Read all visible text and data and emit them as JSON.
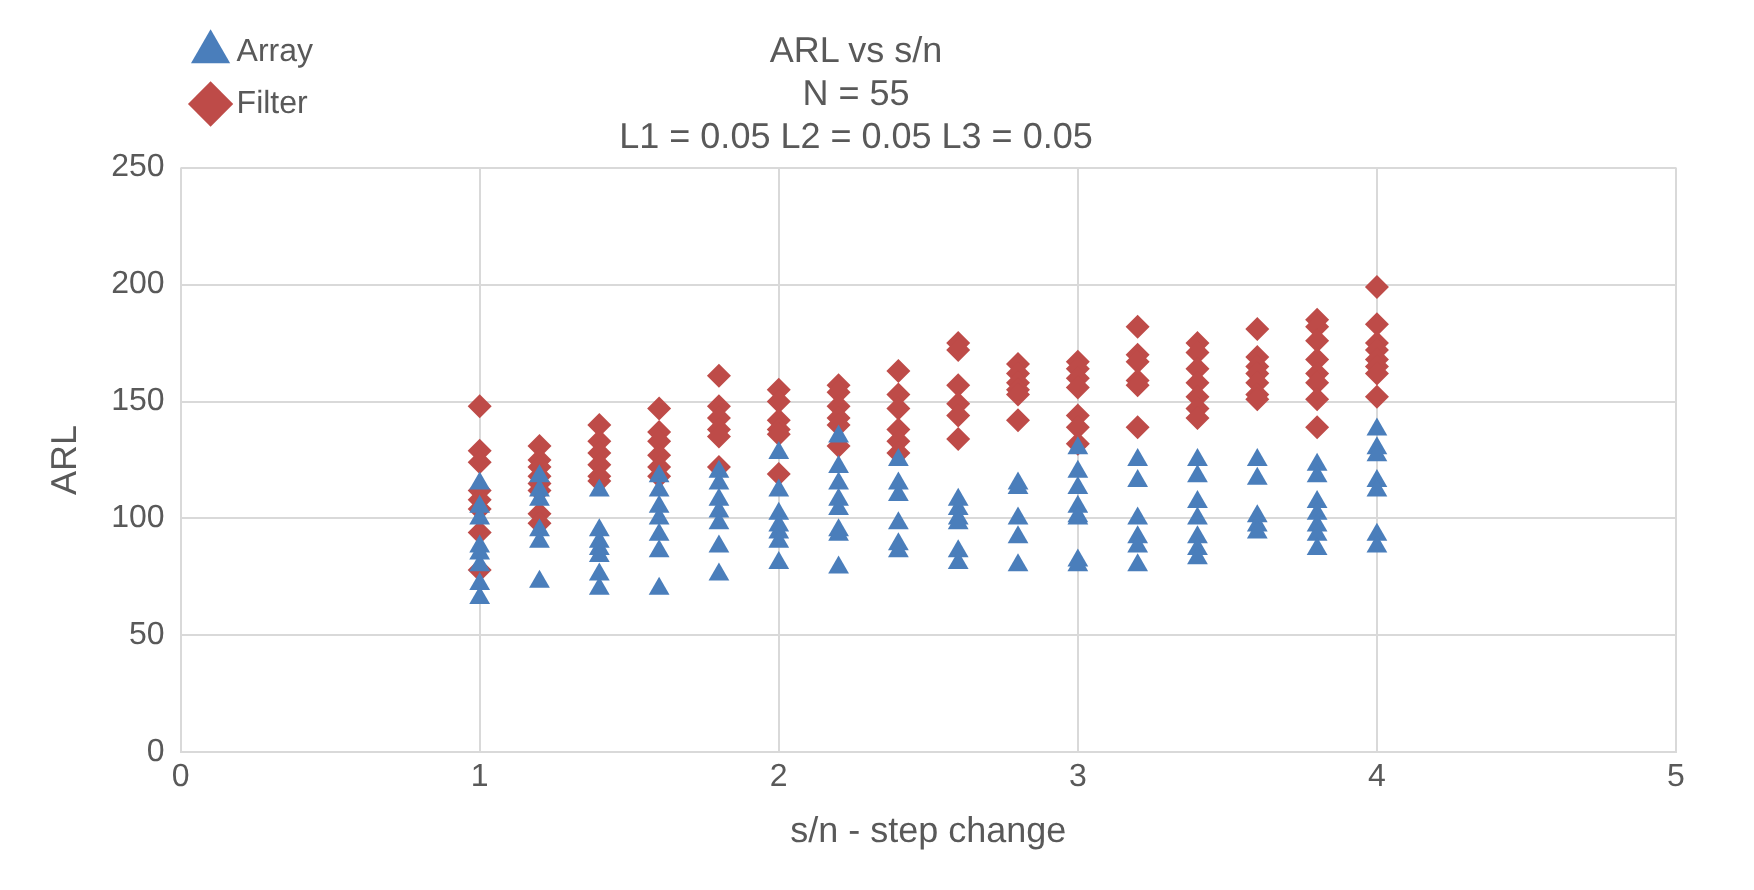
{
  "chart_data": {
    "type": "scatter",
    "title": "ARL vs s/n\nN = 55\nL1 = 0.05 L2 = 0.05 L3 = 0.05",
    "xlabel": "s/n - step change",
    "ylabel": "ARL",
    "xlim": [
      0,
      5
    ],
    "xticks": [
      0,
      1,
      2,
      3,
      4,
      5
    ],
    "ylim": [
      0,
      250
    ],
    "yticks": [
      0,
      50,
      100,
      150,
      200,
      250
    ],
    "grid": true,
    "legend": "top left",
    "series": [
      {
        "name": "Array",
        "color": "#4a7ebb",
        "marker": "triangle",
        "x": [
          1,
          1,
          1,
          1,
          1,
          1,
          1,
          1,
          1.2,
          1.2,
          1.2,
          1.2,
          1.2,
          1.2,
          1.4,
          1.4,
          1.4,
          1.4,
          1.4,
          1.4,
          1.4,
          1.6,
          1.6,
          1.6,
          1.6,
          1.6,
          1.6,
          1.6,
          1.8,
          1.8,
          1.8,
          1.8,
          1.8,
          1.8,
          1.8,
          2,
          2,
          2,
          2,
          2,
          2,
          2,
          2.2,
          2.2,
          2.2,
          2.2,
          2.2,
          2.2,
          2.2,
          2.2,
          2.4,
          2.4,
          2.4,
          2.4,
          2.4,
          2.4,
          2.6,
          2.6,
          2.6,
          2.6,
          2.6,
          2.6,
          2.8,
          2.8,
          2.8,
          2.8,
          2.8,
          3,
          3,
          3,
          3,
          3,
          3,
          3,
          3,
          3.2,
          3.2,
          3.2,
          3.2,
          3.2,
          3.2,
          3.4,
          3.4,
          3.4,
          3.4,
          3.4,
          3.4,
          3.4,
          3.6,
          3.6,
          3.6,
          3.6,
          3.6,
          3.8,
          3.8,
          3.8,
          3.8,
          3.8,
          3.8,
          3.8,
          4,
          4,
          4,
          4,
          4,
          4,
          4
        ],
        "values": [
          115,
          105,
          100,
          88,
          85,
          80,
          72,
          66,
          118,
          112,
          108,
          95,
          90,
          73,
          112,
          95,
          90,
          87,
          84,
          76,
          70,
          118,
          112,
          105,
          100,
          93,
          86,
          70,
          120,
          115,
          108,
          103,
          98,
          88,
          76,
          128,
          112,
          102,
          97,
          94,
          90,
          81,
          135,
          122,
          115,
          108,
          104,
          95,
          93,
          79,
          125,
          115,
          110,
          98,
          89,
          86,
          108,
          104,
          100,
          98,
          86,
          81,
          115,
          113,
          100,
          92,
          80,
          130,
          120,
          113,
          105,
          101,
          100,
          82,
          80,
          125,
          116,
          100,
          92,
          88,
          80,
          125,
          118,
          107,
          100,
          92,
          87,
          83,
          125,
          117,
          101,
          97,
          94,
          123,
          118,
          107,
          102,
          97,
          93,
          87,
          138,
          130,
          127,
          116,
          112,
          93,
          88
        ]
      },
      {
        "name": "Filter",
        "color": "#be4b48",
        "marker": "diamond",
        "x": [
          1,
          1,
          1,
          1,
          1,
          1,
          1,
          1,
          1.2,
          1.2,
          1.2,
          1.2,
          1.2,
          1.2,
          1.2,
          1.2,
          1.4,
          1.4,
          1.4,
          1.4,
          1.4,
          1.4,
          1.6,
          1.6,
          1.6,
          1.6,
          1.6,
          1.6,
          1.8,
          1.8,
          1.8,
          1.8,
          1.8,
          1.8,
          2,
          2,
          2,
          2,
          2,
          2,
          2.2,
          2.2,
          2.2,
          2.2,
          2.2,
          2.2,
          2.4,
          2.4,
          2.4,
          2.4,
          2.4,
          2.4,
          2.6,
          2.6,
          2.6,
          2.6,
          2.6,
          2.6,
          2.8,
          2.8,
          2.8,
          2.8,
          2.8,
          2.8,
          3,
          3,
          3,
          3,
          3,
          3,
          3,
          3.2,
          3.2,
          3.2,
          3.2,
          3.2,
          3.2,
          3.4,
          3.4,
          3.4,
          3.4,
          3.4,
          3.4,
          3.4,
          3.6,
          3.6,
          3.6,
          3.6,
          3.6,
          3.6,
          3.6,
          3.8,
          3.8,
          3.8,
          3.8,
          3.8,
          3.8,
          3.8,
          3.8,
          4,
          4,
          4,
          4,
          4,
          4,
          4,
          4
        ],
        "values": [
          148,
          129,
          124,
          112,
          108,
          104,
          94,
          78,
          131,
          125,
          122,
          118,
          115,
          112,
          102,
          98,
          140,
          133,
          128,
          123,
          118,
          116,
          147,
          137,
          133,
          127,
          122,
          118,
          161,
          148,
          143,
          138,
          135,
          122,
          155,
          150,
          142,
          138,
          136,
          119,
          157,
          154,
          148,
          143,
          140,
          131,
          163,
          153,
          147,
          138,
          133,
          128,
          175,
          172,
          157,
          149,
          144,
          134,
          166,
          162,
          158,
          155,
          153,
          142,
          167,
          164,
          160,
          156,
          144,
          139,
          132,
          182,
          170,
          167,
          159,
          157,
          139,
          175,
          171,
          164,
          158,
          152,
          147,
          143,
          181,
          169,
          165,
          162,
          158,
          153,
          151,
          185,
          182,
          176,
          168,
          162,
          158,
          151,
          139,
          199,
          183,
          175,
          172,
          168,
          165,
          162,
          152
        ]
      }
    ]
  }
}
